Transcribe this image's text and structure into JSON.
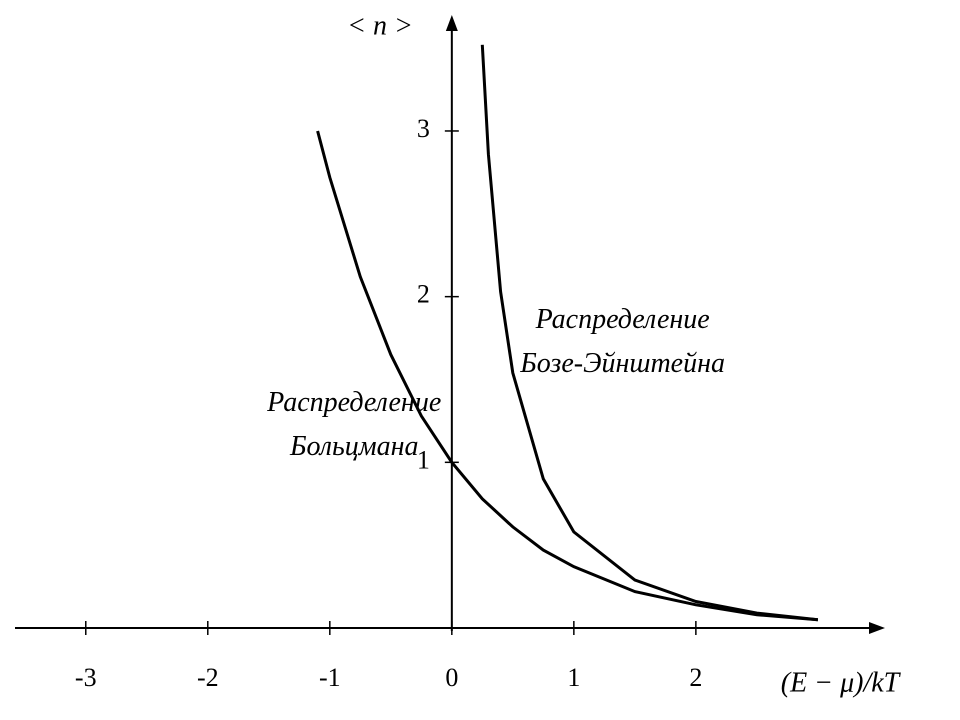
{
  "chart_data": {
    "type": "line",
    "x_label": "(E − μ)/kT",
    "y_label": "< n >",
    "annotations": [
      {
        "lines": [
          "Распределение",
          "Больцмана"
        ],
        "x": -0.8,
        "y": 1.35
      },
      {
        "lines": [
          "Распределение",
          "Бозе-Эйнштейна"
        ],
        "x": 1.4,
        "y": 1.85
      }
    ],
    "series": [
      {
        "name": "Больцмана",
        "color": "#000000",
        "x": [
          -1.1,
          -1,
          -0.75,
          -0.5,
          -0.25,
          0,
          0.25,
          0.5,
          0.75,
          1,
          1.5,
          2,
          2.5,
          3
        ],
        "values": [
          3.0,
          2.72,
          2.12,
          1.65,
          1.28,
          1,
          0.78,
          0.61,
          0.47,
          0.37,
          0.22,
          0.14,
          0.08,
          0.05
        ]
      },
      {
        "name": "Бозе-Эйнштейна",
        "color": "#000000",
        "x": [
          0.25,
          0.3,
          0.4,
          0.5,
          0.75,
          1,
          1.5,
          2,
          2.5,
          3
        ],
        "values": [
          3.52,
          2.86,
          2.03,
          1.54,
          0.9,
          0.58,
          0.29,
          0.16,
          0.09,
          0.05
        ]
      }
    ],
    "xlim": [
      -3.58,
      3.55
    ],
    "ylim": [
      0,
      3.7
    ],
    "xticks": [
      -3,
      -2,
      -1,
      0,
      1,
      2
    ],
    "yticks": [
      1,
      2,
      3
    ]
  }
}
